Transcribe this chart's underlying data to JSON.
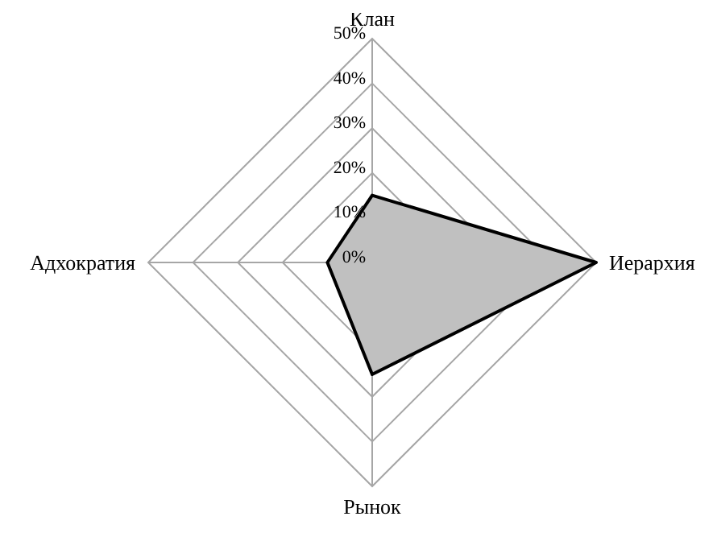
{
  "chart_data": {
    "type": "radar",
    "categories": [
      "Клан",
      "Иерархия",
      "Рынок",
      "Адхократия"
    ],
    "series": [
      {
        "color": "#c0c0c0",
        "values": [
          15,
          50,
          25,
          10
        ]
      }
    ],
    "ylim": [
      0,
      50
    ],
    "yticks": [
      {
        "value": 0,
        "label": "0%"
      },
      {
        "value": 10,
        "label": "10%"
      },
      {
        "value": 20,
        "label": "20%"
      },
      {
        "value": 30,
        "label": "30%"
      },
      {
        "value": 40,
        "label": "40%"
      },
      {
        "value": 50,
        "label": "50%"
      }
    ],
    "grid": true,
    "legend": false
  }
}
